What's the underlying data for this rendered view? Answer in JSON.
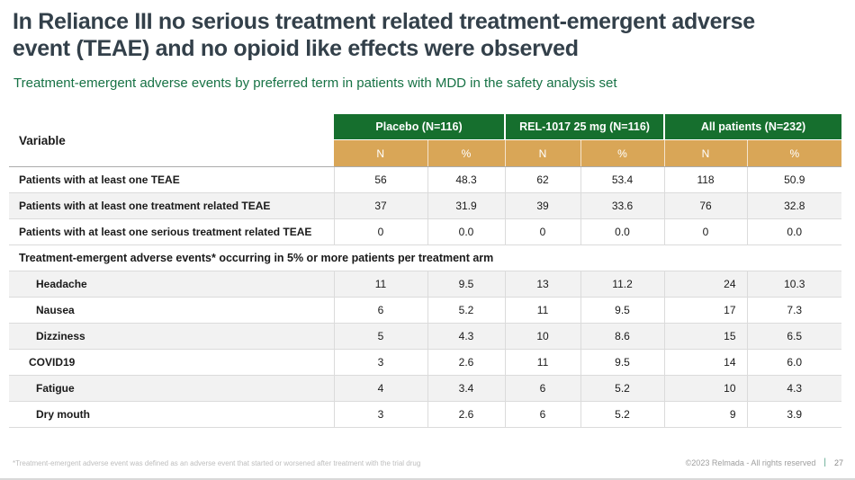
{
  "slide": {
    "title_line1": "In Reliance III no serious treatment related treatment-emergent adverse",
    "title_line2": "event (TEAE) and no opioid like effects were observed",
    "subtitle": "Treatment-emergent adverse events by preferred term in patients with MDD in the safety analysis set"
  },
  "table": {
    "variable_header": "Variable",
    "groups": [
      {
        "label": "Placebo (N=116)"
      },
      {
        "label": "REL-1017 25 mg (N=116)"
      },
      {
        "label": "All patients (N=232)"
      }
    ],
    "subheaders": [
      "N",
      "%",
      "N",
      "%",
      "N",
      "%"
    ],
    "rows": [
      {
        "type": "data",
        "group": "summary",
        "label": "Patients with at least one TEAE",
        "values": [
          "56",
          "48.3",
          "62",
          "53.4",
          "118",
          "50.9"
        ]
      },
      {
        "type": "data",
        "group": "summary",
        "label": "Patients with at least one treatment related TEAE",
        "values": [
          "37",
          "31.9",
          "39",
          "33.6",
          "76",
          "32.8"
        ]
      },
      {
        "type": "data",
        "group": "summary",
        "label": "Patients with at least one serious treatment related TEAE",
        "values": [
          "0",
          "0.0",
          "0",
          "0.0",
          "0",
          "0.0"
        ]
      },
      {
        "type": "section",
        "label": "Treatment-emergent adverse events* occurring in 5% or more patients per treatment arm"
      },
      {
        "type": "data",
        "group": "ae",
        "label": "Headache",
        "values": [
          "11",
          "9.5",
          "13",
          "11.2",
          "24",
          "10.3"
        ]
      },
      {
        "type": "data",
        "group": "ae",
        "label": "Nausea",
        "values": [
          "6",
          "5.2",
          "11",
          "9.5",
          "17",
          "7.3"
        ]
      },
      {
        "type": "data",
        "group": "ae",
        "label": "Dizziness",
        "values": [
          "5",
          "4.3",
          "10",
          "8.6",
          "15",
          "6.5"
        ]
      },
      {
        "type": "data",
        "group": "ae",
        "label": "COVID19",
        "indent": "small",
        "values": [
          "3",
          "2.6",
          "11",
          "9.5",
          "14",
          "6.0"
        ]
      },
      {
        "type": "data",
        "group": "ae",
        "label": "Fatigue",
        "values": [
          "4",
          "3.4",
          "6",
          "5.2",
          "10",
          "4.3"
        ]
      },
      {
        "type": "data",
        "group": "ae",
        "label": "Dry mouth",
        "values": [
          "3",
          "2.6",
          "6",
          "5.2",
          "9",
          "3.9"
        ]
      }
    ]
  },
  "footer": {
    "footnote": "*Treatment-emergent adverse event was defined as an adverse event that started or worsened after treatment with the trial drug",
    "copyright": "©2023 Relmada - All rights reserved",
    "separator": "|",
    "page_number": "27"
  },
  "colors": {
    "title": "#33404A",
    "subtitle_green": "#177245",
    "header_green": "#166F2E",
    "subheader_tan": "#D9A657",
    "row_alt": "#F2F2F2",
    "footer_separator": "#56A287"
  }
}
